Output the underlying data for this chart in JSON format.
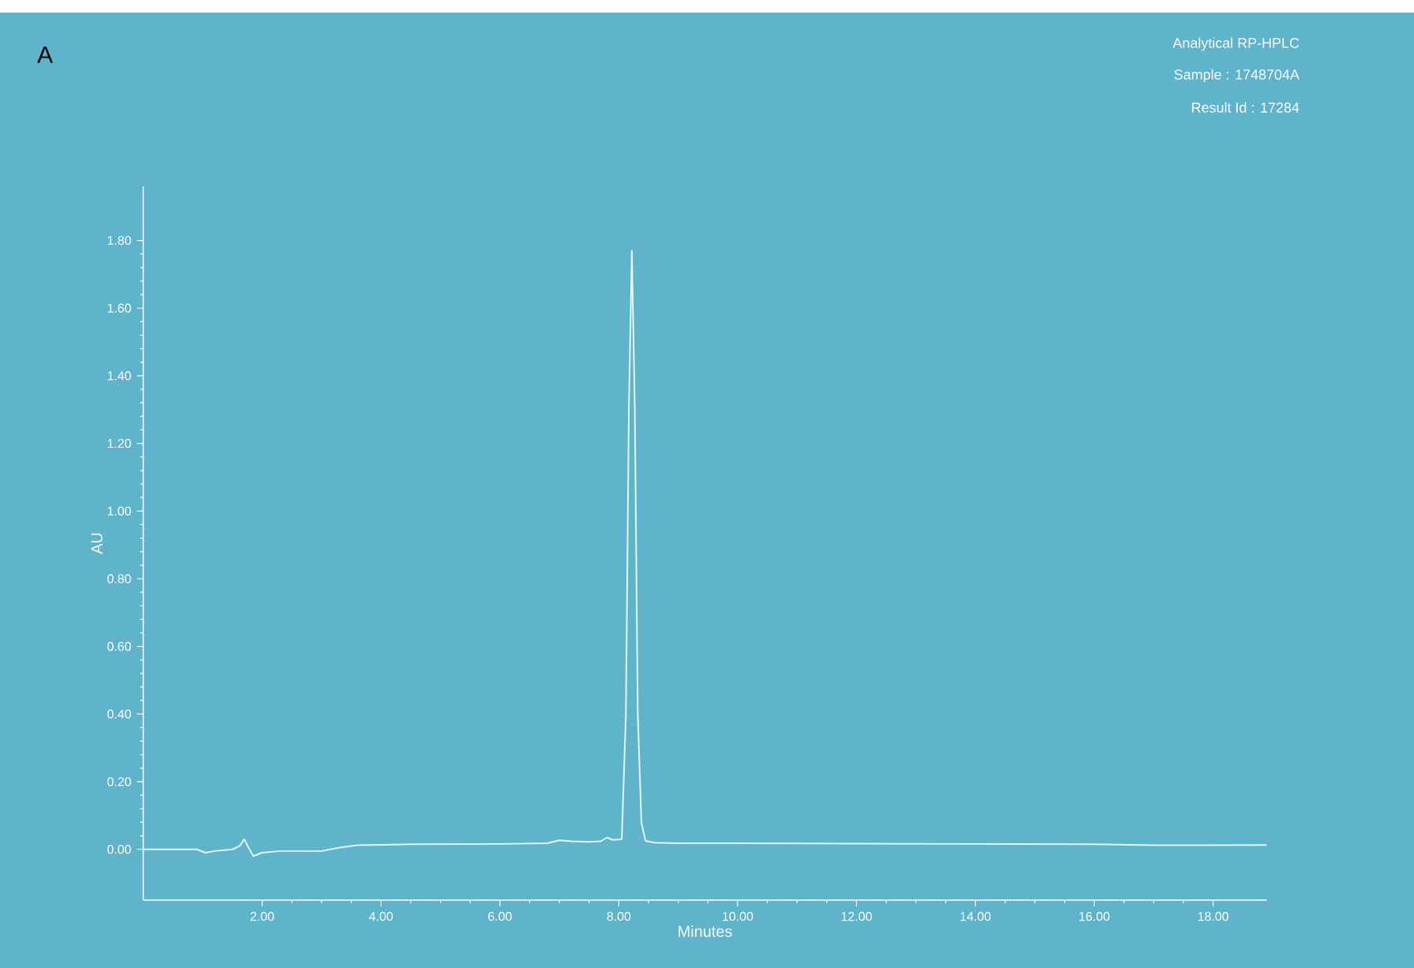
{
  "chart_data": {
    "type": "line",
    "xlabel": "Minutes",
    "ylabel": "AU",
    "annotations": [
      "A",
      "Analytical RP-HPLC",
      "Sample : 1748704A",
      "Result Id : 17284"
    ],
    "xlim": [
      0,
      18.9
    ],
    "ylim": [
      -0.15,
      1.96
    ],
    "xticks": [
      {
        "value": 2,
        "label": "2.00"
      },
      {
        "value": 4,
        "label": "4.00"
      },
      {
        "value": 6,
        "label": "6.00"
      },
      {
        "value": 8,
        "label": "8.00"
      },
      {
        "value": 10,
        "label": "10.00"
      },
      {
        "value": 12,
        "label": "12.00"
      },
      {
        "value": 14,
        "label": "14.00"
      },
      {
        "value": 16,
        "label": "16.00"
      },
      {
        "value": 18,
        "label": "18.00"
      }
    ],
    "yticks": [
      {
        "value": 0,
        "label": "0.00"
      },
      {
        "value": 0.2,
        "label": "0.20"
      },
      {
        "value": 0.4,
        "label": "0.40"
      },
      {
        "value": 0.6,
        "label": "0.60"
      },
      {
        "value": 0.8,
        "label": "0.80"
      },
      {
        "value": 1.0,
        "label": "1.00"
      },
      {
        "value": 1.2,
        "label": "1.20"
      },
      {
        "value": 1.4,
        "label": "1.40"
      },
      {
        "value": 1.6,
        "label": "1.60"
      },
      {
        "value": 1.8,
        "label": "1.80"
      }
    ],
    "grid": false,
    "marker": "none",
    "line_style": "solid",
    "series": [
      {
        "color": "#e4f6fa",
        "x": [
          0,
          0.9,
          1.05,
          1.2,
          1.5,
          1.62,
          1.7,
          1.77,
          1.85,
          2.0,
          2.3,
          3.0,
          3.3,
          3.6,
          4.5,
          6.0,
          6.8,
          7.0,
          7.2,
          7.5,
          7.7,
          7.8,
          7.9,
          8.05,
          8.12,
          8.17,
          8.22,
          8.27,
          8.32,
          8.38,
          8.45,
          8.6,
          9.0,
          10.0,
          12.0,
          14.0,
          16.0,
          17.0,
          18.9
        ],
        "values": [
          0.0,
          0.0,
          -0.01,
          -0.005,
          0.0,
          0.01,
          0.03,
          0.005,
          -0.02,
          -0.01,
          -0.005,
          -0.005,
          0.005,
          0.012,
          0.015,
          0.016,
          0.018,
          0.027,
          0.024,
          0.022,
          0.024,
          0.035,
          0.028,
          0.03,
          0.4,
          1.3,
          1.77,
          1.3,
          0.4,
          0.08,
          0.025,
          0.02,
          0.018,
          0.018,
          0.017,
          0.016,
          0.015,
          0.012,
          0.013
        ]
      }
    ]
  }
}
